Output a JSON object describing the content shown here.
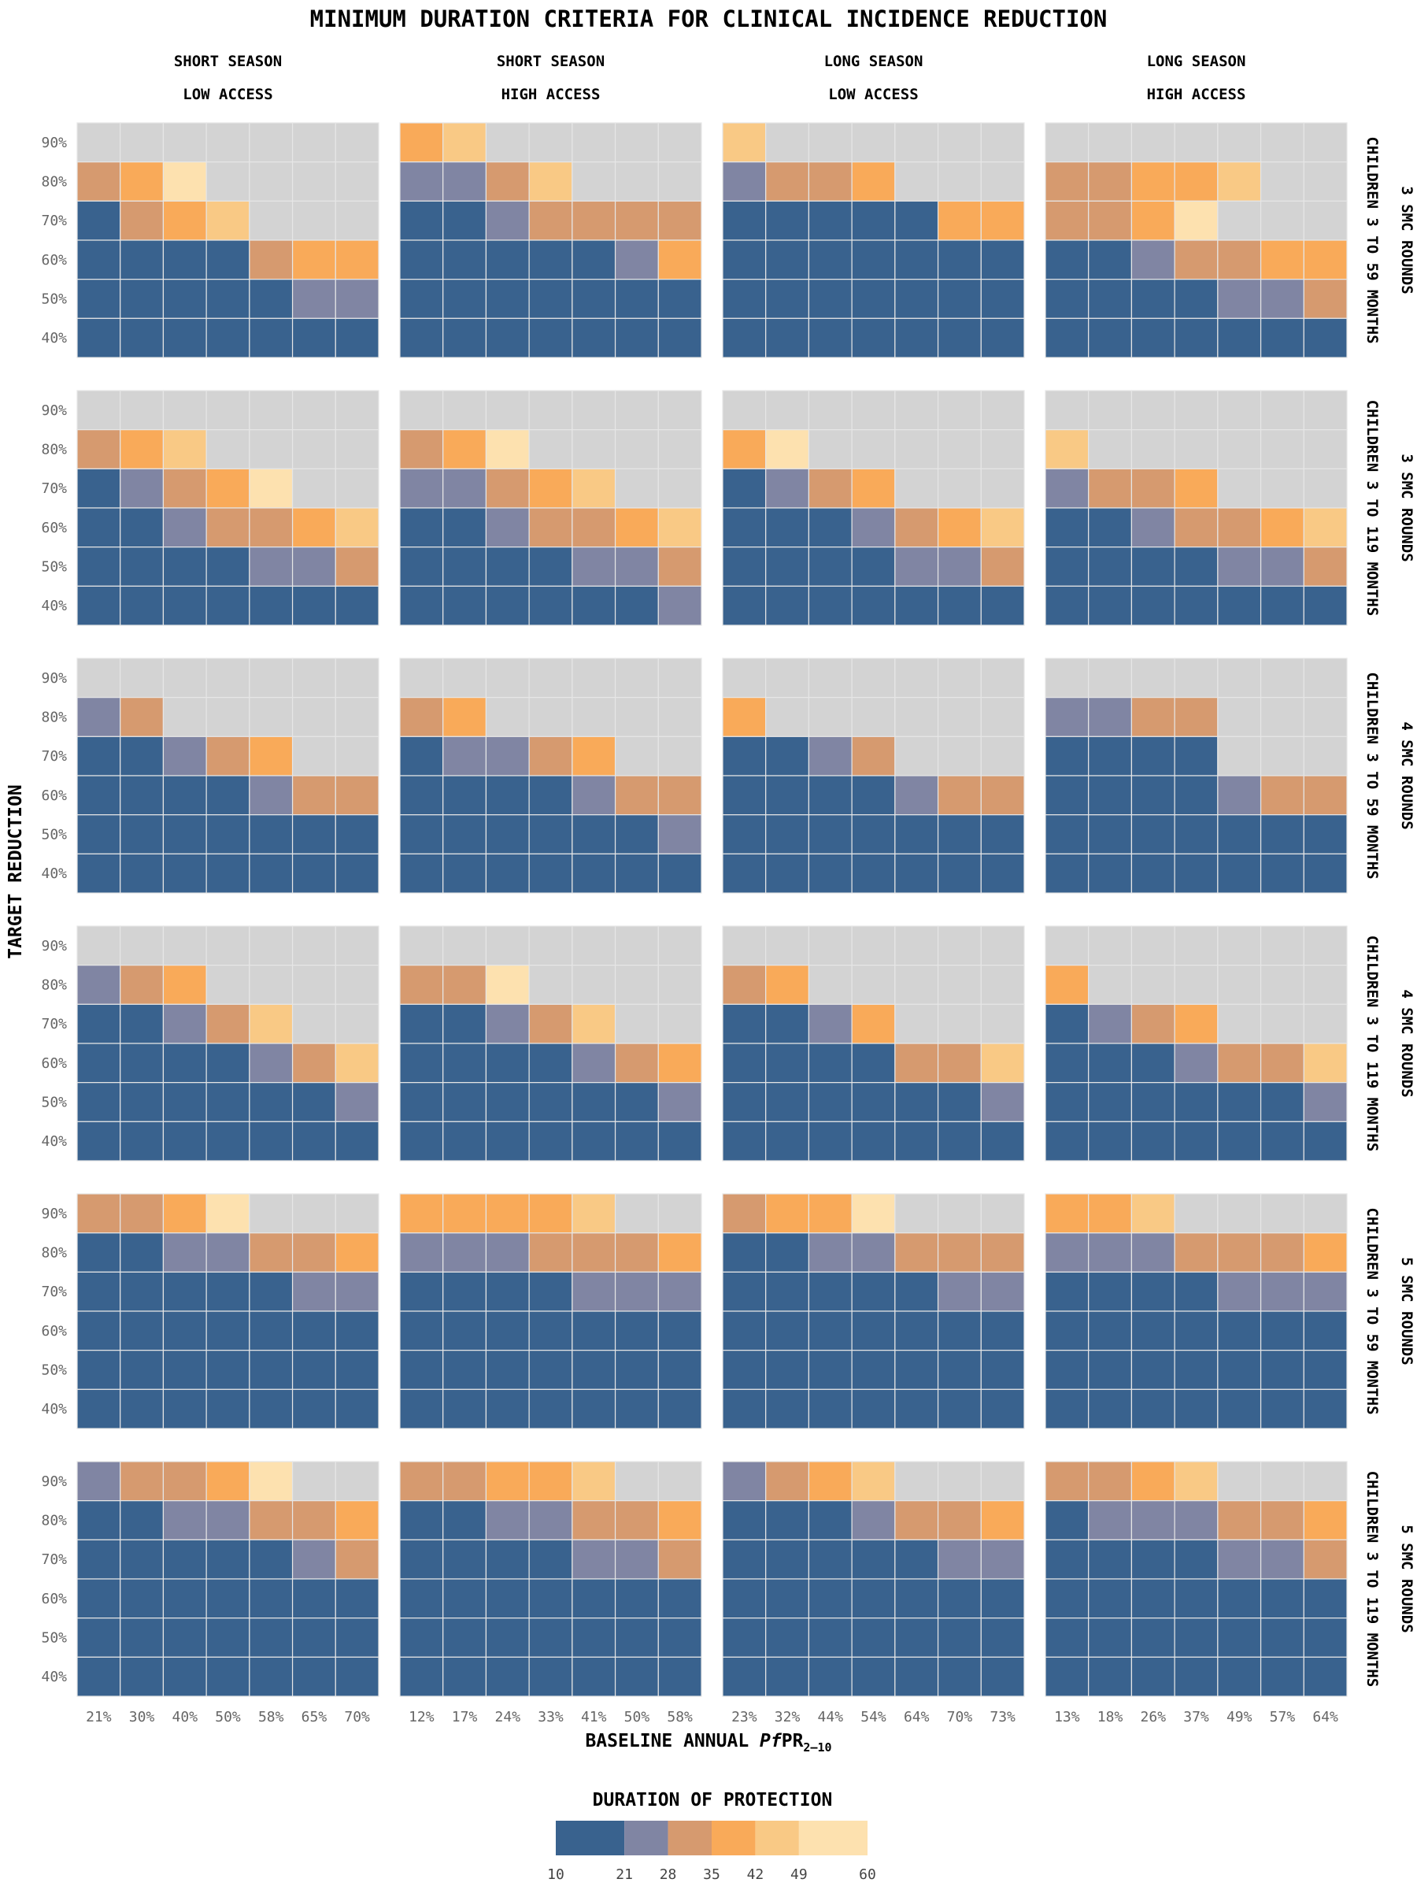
{
  "chart_data": {
    "type": "heatmap",
    "title": "MINIMUM DURATION CRITERIA FOR CLINICAL INCIDENCE REDUCTION",
    "xlabel_main": "BASELINE ANNUAL ",
    "xlabel_italic": "Pf",
    "xlabel_rest": "PR",
    "xlabel_sub": "2–10",
    "ylabel": "TARGET REDUCTION",
    "y_ticks": [
      "90%",
      "80%",
      "70%",
      "60%",
      "50%",
      "40%"
    ],
    "columns": [
      {
        "line1": "SHORT SEASON",
        "line2": "LOW ACCESS",
        "x_ticks": [
          "21%",
          "30%",
          "40%",
          "50%",
          "58%",
          "65%",
          "70%"
        ]
      },
      {
        "line1": "SHORT SEASON",
        "line2": "HIGH ACCESS",
        "x_ticks": [
          "12%",
          "17%",
          "24%",
          "33%",
          "41%",
          "50%",
          "58%"
        ]
      },
      {
        "line1": "LONG SEASON",
        "line2": "LOW ACCESS",
        "x_ticks": [
          "23%",
          "32%",
          "44%",
          "54%",
          "64%",
          "70%",
          "73%"
        ]
      },
      {
        "line1": "LONG SEASON",
        "line2": "HIGH ACCESS",
        "x_ticks": [
          "13%",
          "18%",
          "26%",
          "37%",
          "49%",
          "57%",
          "64%"
        ]
      }
    ],
    "rows": [
      {
        "label": "3 SMC ROUNDS",
        "label2": "CHILDREN 3 TO 59 MONTHS"
      },
      {
        "label": "3 SMC ROUNDS",
        "label2": "CHILDREN 3 TO 119 MONTHS"
      },
      {
        "label": "4 SMC ROUNDS",
        "label2": "CHILDREN 3 TO 59 MONTHS"
      },
      {
        "label": "4 SMC ROUNDS",
        "label2": "CHILDREN 3 TO 119 MONTHS"
      },
      {
        "label": "5 SMC ROUNDS",
        "label2": "CHILDREN 3 TO 59 MONTHS"
      },
      {
        "label": "5 SMC ROUNDS",
        "label2": "CHILDREN 3 TO 119 MONTHS"
      }
    ],
    "legend": {
      "title": "DURATION OF PROTECTION",
      "ticks": [
        "10",
        "21",
        "28",
        "35",
        "42",
        "49",
        "60"
      ],
      "bins": [
        {
          "from": 10,
          "to": 21,
          "color": "#39628e"
        },
        {
          "from": 21,
          "to": 28,
          "color": "#8085a3"
        },
        {
          "from": 28,
          "to": 35,
          "color": "#d69a6f"
        },
        {
          "from": 35,
          "to": 42,
          "color": "#f9aa59"
        },
        {
          "from": 42,
          "to": 49,
          "color": "#f9c985"
        },
        {
          "from": 49,
          "to": 60,
          "color": "#fde1af"
        }
      ],
      "not_achievable_color": "#d3d3d3"
    },
    "cell_bin_encoding": {
      "0": "10-21",
      "1": "21-28",
      "2": "28-35",
      "3": "35-42",
      "4": "42-49",
      "5": "49-60",
      "9": "not achievable"
    },
    "panels": [
      [
        [
          "9999999",
          "2359999",
          "0234999",
          "0000233",
          "0000011",
          "0000000"
        ],
        [
          "3499999",
          "1124999",
          "0012222",
          "0000013",
          "0000000",
          "0000000"
        ],
        [
          "4999999",
          "1223999",
          "0000033",
          "0000000",
          "0000000",
          "0000000"
        ],
        [
          "9999999",
          "2233499",
          "2235999",
          "0012233",
          "0000112",
          "0000000"
        ]
      ],
      [
        [
          "9999999",
          "2349999",
          "0123599",
          "0012234",
          "0000112",
          "0000000"
        ],
        [
          "9999999",
          "2359999",
          "1123499",
          "0012234",
          "0000112",
          "0000001"
        ],
        [
          "9999999",
          "3599999",
          "0123999",
          "0001234",
          "0000112",
          "0000000"
        ],
        [
          "9999999",
          "4999999",
          "1223999",
          "0012234",
          "0000112",
          "0000000"
        ]
      ],
      [
        [
          "9999999",
          "1299999",
          "0012399",
          "0000122",
          "0000000",
          "0000000"
        ],
        [
          "9999999",
          "2399999",
          "0112399",
          "0000122",
          "0000001",
          "0000000"
        ],
        [
          "9999999",
          "3999999",
          "0012999",
          "0000122",
          "0000000",
          "0000000"
        ],
        [
          "9999999",
          "1122999",
          "0000999",
          "0000122",
          "0000000",
          "0000000"
        ]
      ],
      [
        [
          "9999999",
          "1239999",
          "0012499",
          "0000124",
          "0000001",
          "0000000"
        ],
        [
          "9999999",
          "2259999",
          "0012499",
          "0000123",
          "0000001",
          "0000000"
        ],
        [
          "9999999",
          "2399999",
          "0013999",
          "0000224",
          "0000001",
          "0000000"
        ],
        [
          "9999999",
          "3999999",
          "0123999",
          "0001224",
          "0000001",
          "0000000"
        ]
      ],
      [
        [
          "2235999",
          "0011223",
          "0000011",
          "0000000",
          "0000000",
          "0000000"
        ],
        [
          "3333499",
          "1112223",
          "0000111",
          "0000000",
          "0000000",
          "0000000"
        ],
        [
          "2335999",
          "0011222",
          "0000011",
          "0000000",
          "0000000",
          "0000000"
        ],
        [
          "3349999",
          "1112223",
          "0000111",
          "0000000",
          "0000000",
          "0000000"
        ]
      ],
      [
        [
          "1223599",
          "0011223",
          "0000012",
          "0000000",
          "0000000",
          "0000000"
        ],
        [
          "2233499",
          "0011223",
          "0000112",
          "0000000",
          "0000000",
          "0000000"
        ],
        [
          "1234999",
          "0001223",
          "0000011",
          "0000000",
          "0000000",
          "0000000"
        ],
        [
          "2234999",
          "0111223",
          "0000112",
          "0000000",
          "0000000",
          "0000000"
        ]
      ]
    ]
  }
}
